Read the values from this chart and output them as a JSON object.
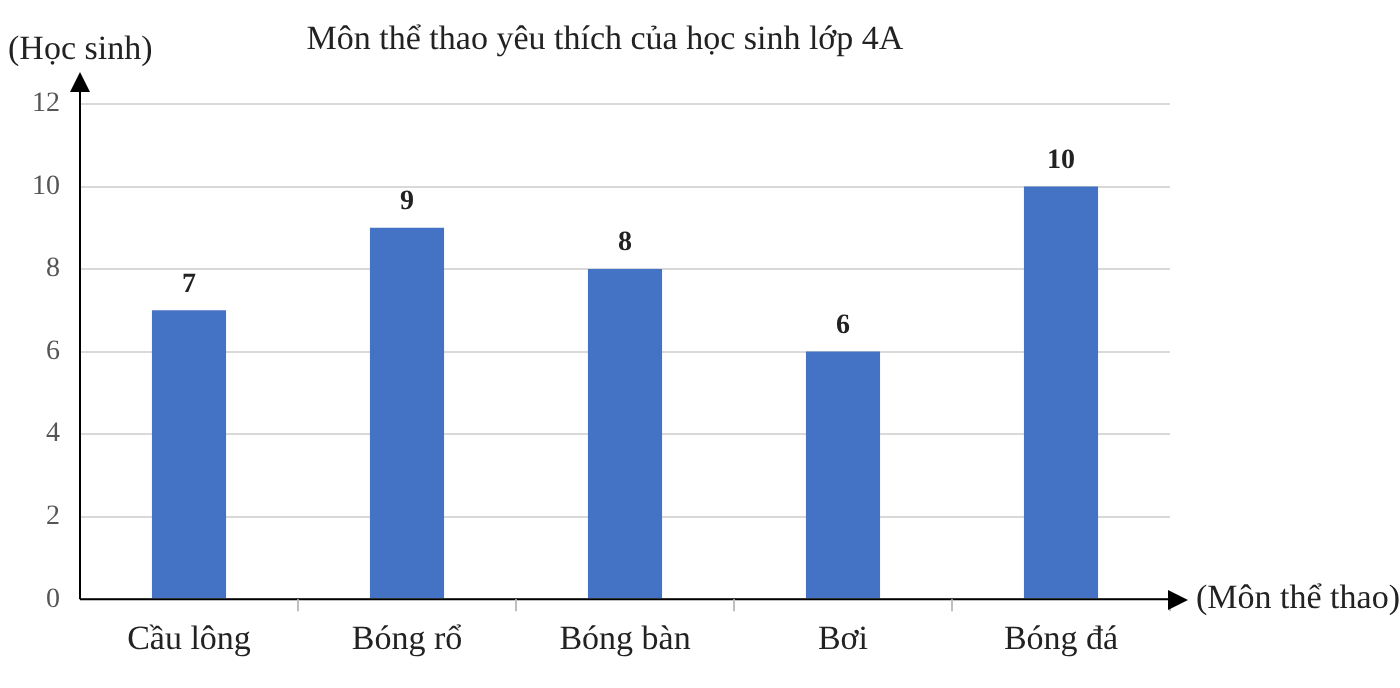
{
  "chart_data": {
    "type": "bar",
    "title": "Môn thể thao yêu thích của học sinh lớp 4A",
    "xlabel": "(Môn thể thao)",
    "ylabel": "(Học sinh)",
    "categories": [
      "Cầu lông",
      "Bóng rổ",
      "Bóng bàn",
      "Bơi",
      "Bóng đá"
    ],
    "values": [
      7,
      9,
      8,
      6,
      10
    ],
    "color": "#4472c4",
    "ylim": [
      0,
      12
    ],
    "yticks": [
      0,
      2,
      4,
      6,
      8,
      10,
      12
    ],
    "grid": "y",
    "data_labels": true,
    "legend": false
  }
}
